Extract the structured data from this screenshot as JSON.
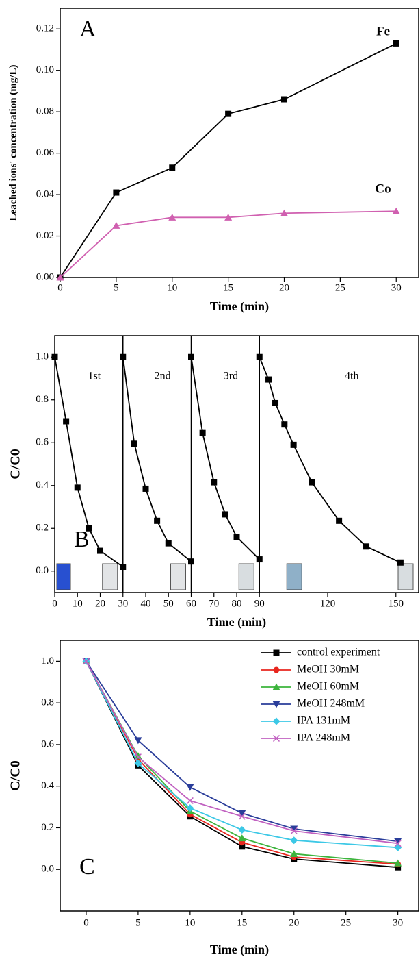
{
  "chart_data": [
    {
      "type": "line",
      "annotations": [
        "A",
        "Fe",
        "Co"
      ],
      "x_label": "Time (min)",
      "y_label": "Leached ions' concentration (mg/L)",
      "x": [
        0,
        5,
        10,
        15,
        20,
        30
      ],
      "series": [
        {
          "name": "Fe",
          "color": "#000000",
          "marker": "square",
          "values": [
            0,
            0.041,
            0.053,
            0.079,
            0.086,
            0.113
          ]
        },
        {
          "name": "Co",
          "color": "#d060b0",
          "marker": "triangle",
          "values": [
            0,
            0.025,
            0.029,
            0.029,
            0.031,
            0.032
          ]
        }
      ],
      "xlim": [
        0,
        32
      ],
      "xticks": [
        0,
        5,
        10,
        15,
        20,
        25,
        30
      ],
      "ylim": [
        0,
        0.13
      ],
      "yticks": [
        {
          "value": 0,
          "label": "0.00"
        },
        0.02,
        0.04,
        0.06,
        0.08,
        {
          "value": 0.1,
          "label": "0.10"
        },
        0.12
      ],
      "grid": false
    },
    {
      "type": "line",
      "annotations": [
        "B",
        "1st",
        "2nd",
        "3rd",
        "4th"
      ],
      "x_label": "Time (min)",
      "y_label": "C/C0",
      "dividers": [
        30,
        60,
        90
      ],
      "series": [
        {
          "color": "#000000",
          "marker": "square",
          "x": [
            0,
            5,
            10,
            15,
            20,
            30
          ],
          "values": [
            1.0,
            0.7,
            0.39,
            0.2,
            0.095,
            0.02
          ]
        },
        {
          "color": "#000000",
          "marker": "square",
          "x": [
            30,
            35,
            40,
            45,
            50,
            60
          ],
          "values": [
            1.0,
            0.595,
            0.385,
            0.235,
            0.13,
            0.045
          ]
        },
        {
          "color": "#000000",
          "marker": "square",
          "x": [
            60,
            65,
            70,
            75,
            80,
            90
          ],
          "values": [
            1.0,
            0.645,
            0.415,
            0.265,
            0.16,
            0.055
          ]
        },
        {
          "color": "#000000",
          "marker": "square",
          "x": [
            90,
            94,
            97,
            101,
            105,
            113,
            125,
            137,
            152
          ],
          "values": [
            1.0,
            0.895,
            0.785,
            0.685,
            0.59,
            0.415,
            0.235,
            0.115,
            0.04
          ]
        }
      ],
      "xlim": [
        0,
        160
      ],
      "xticks": [
        0,
        10,
        20,
        30,
        40,
        50,
        60,
        70,
        80,
        90,
        120,
        150
      ],
      "ylim": [
        -0.1,
        1.1
      ],
      "yticks": [
        {
          "value": 0,
          "label": "0.0"
        },
        0.2,
        0.4,
        0.6,
        0.8,
        {
          "value": 1,
          "label": "1.0"
        }
      ],
      "grid": false
    },
    {
      "type": "line",
      "annotations": [
        "C"
      ],
      "x_label": "Time (min)",
      "y_label": "C/C0",
      "legend": "upper right",
      "x": [
        0,
        5,
        10,
        15,
        20,
        30
      ],
      "series": [
        {
          "name": "control experiment",
          "color": "#000000",
          "marker": "square",
          "values": [
            1.0,
            0.5,
            0.255,
            0.11,
            0.05,
            0.01
          ]
        },
        {
          "name": "MeOH 30mM",
          "color": "#e8261e",
          "marker": "circle",
          "values": [
            1.0,
            0.53,
            0.265,
            0.13,
            0.06,
            0.025
          ]
        },
        {
          "name": "MeOH 60mM",
          "color": "#3cb43c",
          "marker": "triangle",
          "values": [
            1.0,
            0.545,
            0.28,
            0.15,
            0.075,
            0.03
          ]
        },
        {
          "name": "MeOH 248mM",
          "color": "#2a3d9a",
          "marker": "triangle-down",
          "values": [
            1.0,
            0.62,
            0.395,
            0.27,
            0.195,
            0.135
          ]
        },
        {
          "name": "IPA 131mM",
          "color": "#3cc8e6",
          "marker": "diamond",
          "values": [
            1.0,
            0.51,
            0.295,
            0.19,
            0.14,
            0.105
          ]
        },
        {
          "name": "IPA 248mM",
          "color": "#c060c0",
          "marker": "x",
          "values": [
            1.0,
            0.54,
            0.33,
            0.255,
            0.185,
            0.125
          ]
        }
      ],
      "xlim": [
        -2.5,
        32
      ],
      "xticks": [
        0,
        5,
        10,
        15,
        20,
        25,
        30
      ],
      "ylim": [
        -0.2,
        1.1
      ],
      "yticks": [
        {
          "value": 0,
          "label": "0.0"
        },
        0.2,
        0.4,
        0.6,
        0.8,
        {
          "value": 1,
          "label": "1.0"
        }
      ],
      "grid": false
    }
  ]
}
